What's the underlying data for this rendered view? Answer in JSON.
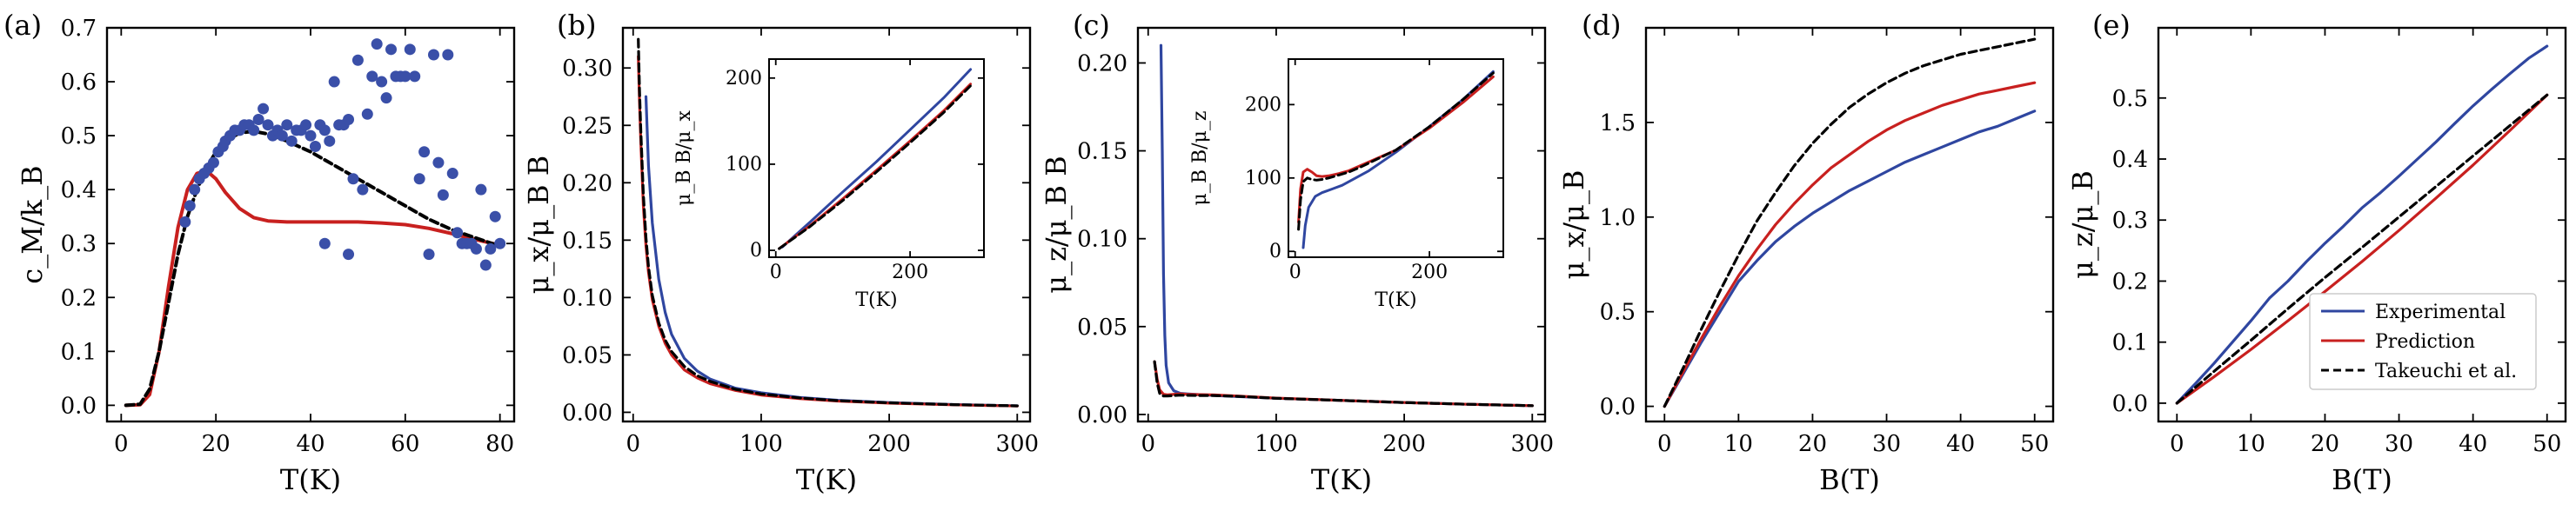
{
  "colors": {
    "experimental": "#2f46a0",
    "prediction": "#c8201f",
    "takeuchi": "#000000",
    "scatter": "#3a4fa8"
  },
  "legend": {
    "entries": [
      "Experimental",
      "Prediction",
      "Takeuchi et al."
    ],
    "placement": "lower-right of panel (e)"
  },
  "chart_data": [
    {
      "type": "line",
      "panel": "(a)",
      "xlabel": "T(K)",
      "ylabel": "c_M/k_B",
      "xlim": [
        -3,
        83
      ],
      "ylim": [
        -0.03,
        0.7
      ],
      "xticks": [
        "0",
        "20",
        "40",
        "60",
        "80"
      ],
      "yticks": [
        "0.0",
        "0.1",
        "0.2",
        "0.3",
        "0.4",
        "0.5",
        "0.6",
        "0.7"
      ],
      "series": [
        {
          "role": "prediction",
          "x": [
            1,
            4,
            6,
            8,
            10,
            12,
            14,
            16,
            18,
            20,
            22,
            25,
            28,
            31,
            35,
            40,
            45,
            50,
            55,
            60,
            65,
            70,
            75,
            80
          ],
          "y": [
            0,
            0.001,
            0.02,
            0.1,
            0.22,
            0.33,
            0.4,
            0.43,
            0.435,
            0.42,
            0.395,
            0.365,
            0.348,
            0.342,
            0.34,
            0.34,
            0.34,
            0.34,
            0.338,
            0.335,
            0.328,
            0.318,
            0.307,
            0.297
          ]
        },
        {
          "role": "takeuchi",
          "x": [
            1,
            4,
            6,
            8,
            10,
            12,
            14,
            16,
            18,
            20,
            22,
            25,
            28,
            31,
            35,
            40,
            45,
            50,
            55,
            60,
            65,
            70,
            75,
            80
          ],
          "y": [
            0,
            0.002,
            0.03,
            0.1,
            0.19,
            0.28,
            0.35,
            0.4,
            0.44,
            0.47,
            0.49,
            0.505,
            0.508,
            0.503,
            0.49,
            0.47,
            0.445,
            0.42,
            0.395,
            0.37,
            0.345,
            0.325,
            0.31,
            0.295
          ]
        },
        {
          "role": "experimental",
          "x": [
            13.5,
            14.5,
            15.5,
            16.5,
            17.5,
            18.5,
            19.5,
            20.5,
            21.5,
            22,
            23,
            24,
            25,
            26,
            27,
            28,
            29,
            30,
            31,
            32,
            33,
            34,
            35,
            36,
            37,
            38,
            39,
            40,
            41,
            42,
            43,
            44,
            45,
            46,
            47,
            48,
            49,
            50,
            51,
            52,
            53,
            54,
            55,
            56,
            57,
            58,
            59,
            60,
            61,
            62,
            63,
            64,
            65,
            66,
            67,
            68,
            69,
            70,
            71,
            72,
            73,
            74,
            75,
            76,
            77,
            78,
            79,
            80,
            43,
            48
          ],
          "y": [
            0.34,
            0.37,
            0.4,
            0.42,
            0.43,
            0.44,
            0.45,
            0.47,
            0.48,
            0.49,
            0.5,
            0.51,
            0.51,
            0.52,
            0.52,
            0.51,
            0.53,
            0.55,
            0.52,
            0.5,
            0.51,
            0.5,
            0.52,
            0.49,
            0.51,
            0.51,
            0.52,
            0.5,
            0.48,
            0.52,
            0.51,
            0.49,
            0.6,
            0.52,
            0.52,
            0.53,
            0.42,
            0.64,
            0.4,
            0.54,
            0.61,
            0.67,
            0.6,
            0.57,
            0.66,
            0.61,
            0.61,
            0.61,
            0.66,
            0.61,
            0.42,
            0.47,
            0.28,
            0.65,
            0.45,
            0.39,
            0.65,
            0.43,
            0.32,
            0.3,
            0.3,
            0.3,
            0.29,
            0.4,
            0.26,
            0.29,
            0.35,
            0.3,
            0.3,
            0.28
          ]
        }
      ]
    },
    {
      "type": "line",
      "panel": "(b)",
      "xlabel": "T(K)",
      "ylabel": "μ_x/μ_B B",
      "xlim": [
        -8,
        310
      ],
      "ylim": [
        -0.008,
        0.335
      ],
      "xticks": [
        "0",
        "100",
        "200",
        "300"
      ],
      "yticks": [
        "0.00",
        "0.05",
        "0.10",
        "0.15",
        "0.20",
        "0.25",
        "0.30"
      ],
      "series": [
        {
          "role": "experimental",
          "x": [
            10,
            12,
            15,
            20,
            25,
            30,
            40,
            50,
            60,
            80,
            100,
            130,
            160,
            200,
            250,
            300
          ],
          "y": [
            0.275,
            0.215,
            0.165,
            0.116,
            0.087,
            0.068,
            0.047,
            0.036,
            0.029,
            0.021,
            0.017,
            0.013,
            0.0105,
            0.0085,
            0.0068,
            0.0056
          ]
        },
        {
          "role": "prediction",
          "x": [
            4,
            5,
            6,
            8,
            10,
            12,
            15,
            20,
            25,
            30,
            40,
            50,
            60,
            80,
            100,
            130,
            160,
            200,
            250,
            300
          ],
          "y": [
            0.31,
            0.27,
            0.235,
            0.18,
            0.145,
            0.122,
            0.098,
            0.075,
            0.06,
            0.05,
            0.037,
            0.03,
            0.025,
            0.019,
            0.015,
            0.012,
            0.0098,
            0.008,
            0.0065,
            0.0055
          ]
        },
        {
          "role": "takeuchi",
          "x": [
            4,
            5,
            6,
            8,
            10,
            12,
            15,
            20,
            25,
            30,
            40,
            50,
            60,
            80,
            100,
            130,
            160,
            200,
            250,
            300
          ],
          "y": [
            0.325,
            0.28,
            0.245,
            0.19,
            0.152,
            0.127,
            0.102,
            0.078,
            0.063,
            0.053,
            0.04,
            0.032,
            0.027,
            0.02,
            0.016,
            0.0125,
            0.0102,
            0.0083,
            0.0067,
            0.0056
          ]
        }
      ],
      "inset": {
        "xlabel": "T(K)",
        "ylabel": "μ_B B/μ_x",
        "xlim": [
          -10,
          310
        ],
        "ylim": [
          -8,
          222
        ],
        "xticks": [
          "0",
          "200"
        ],
        "yticks": [
          "0",
          "100",
          "200"
        ],
        "series": [
          {
            "role": "experimental",
            "x": [
              10,
              50,
              100,
              150,
              200,
              250,
              290
            ],
            "y": [
              4,
              32,
              68,
              103,
              140,
              177,
              210
            ]
          },
          {
            "role": "prediction",
            "x": [
              5,
              50,
              100,
              150,
              200,
              250,
              290
            ],
            "y": [
              2,
              28,
              60,
              93,
              127,
              162,
              193
            ]
          },
          {
            "role": "takeuchi",
            "x": [
              5,
              50,
              100,
              150,
              200,
              250,
              290
            ],
            "y": [
              2,
              27,
              58,
              91,
              125,
              160,
              191
            ]
          }
        ]
      }
    },
    {
      "type": "line",
      "panel": "(c)",
      "xlabel": "T(K)",
      "ylabel": "μ_z/μ_B B",
      "xlim": [
        -8,
        310
      ],
      "ylim": [
        -0.004,
        0.22
      ],
      "xticks": [
        "0",
        "100",
        "200",
        "300"
      ],
      "yticks": [
        "0.00",
        "0.05",
        "0.10",
        "0.15",
        "0.20"
      ],
      "series": [
        {
          "role": "experimental",
          "x": [
            10,
            11,
            12,
            13,
            14,
            16,
            20,
            25,
            30,
            40,
            60,
            100,
            150,
            200,
            250,
            300
          ],
          "y": [
            0.21,
            0.15,
            0.08,
            0.045,
            0.028,
            0.018,
            0.0135,
            0.012,
            0.0117,
            0.0113,
            0.0105,
            0.0092,
            0.008,
            0.0068,
            0.0058,
            0.005
          ]
        },
        {
          "role": "prediction",
          "x": [
            5,
            7,
            9,
            12,
            15,
            20,
            25,
            30,
            40,
            50,
            70,
            100,
            150,
            200,
            250,
            300
          ],
          "y": [
            0.03,
            0.02,
            0.014,
            0.0115,
            0.0112,
            0.0115,
            0.0117,
            0.0115,
            0.0113,
            0.0112,
            0.0105,
            0.0093,
            0.008,
            0.0068,
            0.0058,
            0.005
          ]
        },
        {
          "role": "takeuchi",
          "x": [
            5,
            7,
            9,
            12,
            15,
            20,
            25,
            30,
            40,
            50,
            70,
            100,
            150,
            200,
            250,
            300
          ],
          "y": [
            0.03,
            0.018,
            0.012,
            0.0105,
            0.0105,
            0.0108,
            0.011,
            0.0109,
            0.0108,
            0.0108,
            0.0103,
            0.0092,
            0.008,
            0.0068,
            0.0058,
            0.005
          ]
        }
      ],
      "inset": {
        "xlabel": "T(K)",
        "ylabel": "μ_B B/μ_z",
        "xlim": [
          -10,
          310
        ],
        "ylim": [
          -8,
          262
        ],
        "xticks": [
          "0",
          "200"
        ],
        "yticks": [
          "0",
          "100",
          "200"
        ],
        "series": [
          {
            "role": "experimental",
            "x": [
              12,
              15,
              20,
              30,
              40,
              55,
              70,
              90,
              110,
              150,
              200,
              250,
              295
            ],
            "y": [
              5,
              35,
              60,
              75,
              80,
              85,
              90,
              100,
              110,
              135,
              170,
              207,
              245
            ]
          },
          {
            "role": "prediction",
            "x": [
              5,
              8,
              12,
              18,
              25,
              32,
              40,
              50,
              65,
              80,
              100,
              150,
              200,
              250,
              295
            ],
            "y": [
              40,
              85,
              108,
              112,
              108,
              103,
              102,
              103,
              106,
              110,
              118,
              138,
              168,
              203,
              238
            ]
          },
          {
            "role": "takeuchi",
            "x": [
              5,
              8,
              12,
              18,
              25,
              32,
              40,
              50,
              65,
              80,
              100,
              150,
              200,
              250,
              295
            ],
            "y": [
              30,
              70,
              95,
              100,
              98,
              97,
              98,
              100,
              104,
              108,
              116,
              138,
              170,
              207,
              243
            ]
          }
        ]
      }
    },
    {
      "type": "line",
      "panel": "(d)",
      "xlabel": "B(T)",
      "ylabel": "μ_x/μ_B",
      "xlim": [
        -2.5,
        52.5
      ],
      "ylim": [
        -0.08,
        2.0
      ],
      "xticks": [
        "0",
        "10",
        "20",
        "30",
        "40",
        "50"
      ],
      "yticks": [
        "0.0",
        "0.5",
        "1.0",
        "1.5"
      ],
      "series": [
        {
          "role": "experimental",
          "x": [
            0,
            2.5,
            5,
            7.5,
            10,
            12.5,
            15,
            17.5,
            20,
            22.5,
            25,
            27.5,
            30,
            32.5,
            35,
            37.5,
            40,
            42.5,
            45,
            47.5,
            50
          ],
          "y": [
            0,
            0.17,
            0.34,
            0.5,
            0.66,
            0.77,
            0.87,
            0.95,
            1.02,
            1.08,
            1.14,
            1.19,
            1.24,
            1.29,
            1.33,
            1.37,
            1.41,
            1.45,
            1.48,
            1.52,
            1.56
          ]
        },
        {
          "role": "prediction",
          "x": [
            0,
            2.5,
            5,
            7.5,
            10,
            12.5,
            15,
            17.5,
            20,
            22.5,
            25,
            27.5,
            30,
            32.5,
            35,
            37.5,
            40,
            42.5,
            45,
            47.5,
            50
          ],
          "y": [
            0,
            0.18,
            0.36,
            0.53,
            0.69,
            0.83,
            0.96,
            1.07,
            1.17,
            1.26,
            1.33,
            1.4,
            1.46,
            1.51,
            1.55,
            1.59,
            1.62,
            1.65,
            1.67,
            1.69,
            1.71
          ]
        },
        {
          "role": "takeuchi",
          "x": [
            0,
            2.5,
            5,
            7.5,
            10,
            12.5,
            15,
            17.5,
            20,
            22.5,
            25,
            27.5,
            30,
            32.5,
            35,
            37.5,
            40,
            42.5,
            45,
            47.5,
            50
          ],
          "y": [
            0,
            0.2,
            0.41,
            0.61,
            0.8,
            0.98,
            1.13,
            1.27,
            1.39,
            1.49,
            1.58,
            1.65,
            1.71,
            1.76,
            1.8,
            1.83,
            1.86,
            1.88,
            1.9,
            1.92,
            1.94
          ]
        }
      ]
    },
    {
      "type": "line",
      "panel": "(e)",
      "xlabel": "B(T)",
      "ylabel": "μ_z/μ_B",
      "xlim": [
        -2.5,
        52.5
      ],
      "ylim": [
        -0.03,
        0.615
      ],
      "xticks": [
        "0",
        "10",
        "20",
        "30",
        "40",
        "50"
      ],
      "yticks": [
        "0.0",
        "0.1",
        "0.2",
        "0.3",
        "0.4",
        "0.5"
      ],
      "series": [
        {
          "role": "experimental",
          "x": [
            0,
            2.5,
            5,
            7.5,
            10,
            12.5,
            15,
            17.5,
            20,
            22.5,
            25,
            27.5,
            30,
            32.5,
            35,
            37.5,
            40,
            42.5,
            45,
            47.5,
            50
          ],
          "y": [
            0,
            0.032,
            0.065,
            0.1,
            0.135,
            0.172,
            0.2,
            0.232,
            0.262,
            0.29,
            0.32,
            0.345,
            0.372,
            0.4,
            0.428,
            0.458,
            0.487,
            0.514,
            0.54,
            0.565,
            0.585
          ]
        },
        {
          "role": "prediction",
          "x": [
            0,
            5,
            10,
            15,
            20,
            25,
            30,
            35,
            40,
            45,
            50
          ],
          "y": [
            0,
            0.043,
            0.088,
            0.135,
            0.183,
            0.232,
            0.283,
            0.336,
            0.39,
            0.447,
            0.505
          ]
        },
        {
          "role": "takeuchi",
          "x": [
            0,
            5,
            10,
            15,
            20,
            25,
            30,
            35,
            40,
            45,
            50
          ],
          "y": [
            0,
            0.052,
            0.103,
            0.155,
            0.206,
            0.255,
            0.305,
            0.355,
            0.405,
            0.455,
            0.505
          ]
        }
      ]
    }
  ]
}
